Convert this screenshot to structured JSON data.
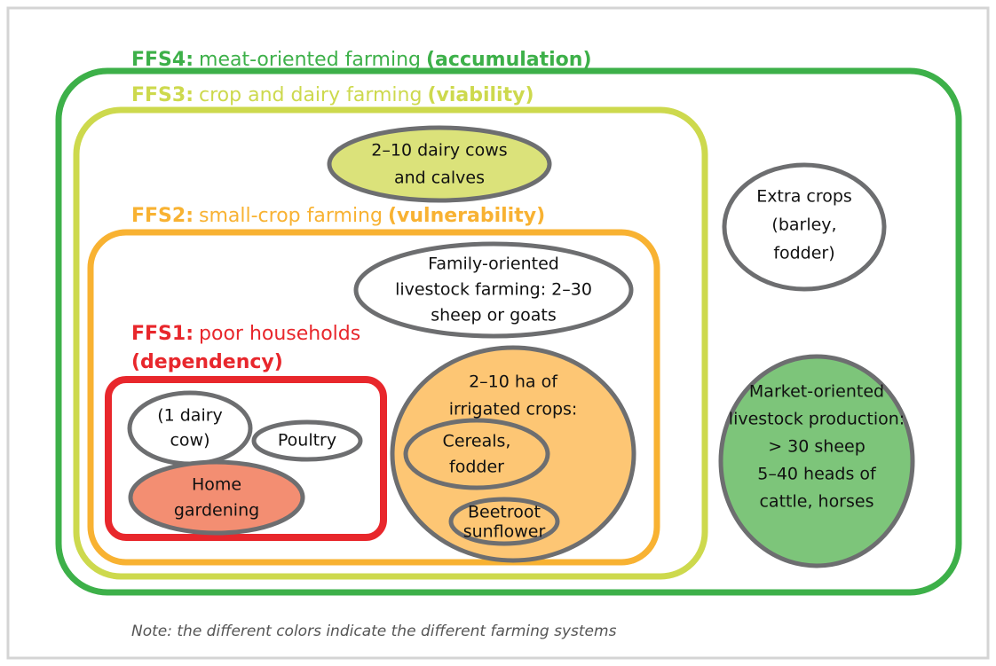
{
  "frames": [
    {
      "code": "FFS4:",
      "name": "meat-oriented farming",
      "qualifier": "(accumulation)"
    },
    {
      "code": "FFS3:",
      "name": "crop and dairy farming",
      "qualifier": "(viability)"
    },
    {
      "code": "FFS2:",
      "name": "small-crop farming",
      "qualifier": "(vulnerability)"
    },
    {
      "code": "FFS1:",
      "name": "poor households",
      "qualifier": "(dependency)"
    }
  ],
  "nodes": [
    {
      "lines": [
        "2–10 dairy cows",
        "and calves"
      ]
    },
    {
      "lines": [
        "Family-oriented",
        "livestock farming: 2–30",
        "sheep or goats"
      ]
    },
    {
      "lines": [
        "Extra crops",
        "(barley,",
        "fodder)"
      ]
    },
    {
      "lines": [
        "Market-oriented",
        "livestock production:",
        "> 30 sheep",
        "5–40 heads of",
        "cattle, horses"
      ]
    },
    {
      "lines": [
        "(1 dairy",
        "cow)"
      ]
    },
    {
      "lines": [
        "Poultry"
      ]
    },
    {
      "lines": [
        "Home",
        "gardening"
      ]
    },
    {
      "lines": [
        "2–10 ha of",
        "irrigated crops:"
      ]
    },
    {
      "lines": [
        "Cereals,",
        "fodder"
      ]
    },
    {
      "lines": [
        "Beetroot",
        "sunflower"
      ]
    }
  ],
  "note": "Note: the different colors indicate the different farming systems"
}
